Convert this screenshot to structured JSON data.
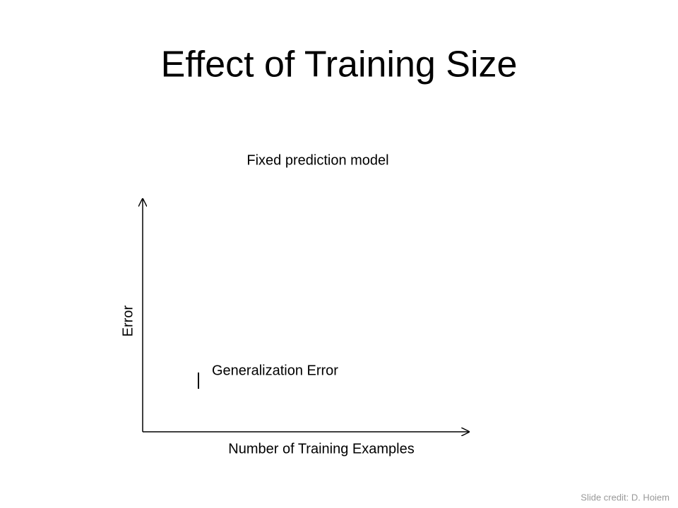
{
  "slide": {
    "title": "Effect of Training Size",
    "subtitle": "Fixed prediction model",
    "y_axis_label": "Error",
    "curve_label": "Generalization Error",
    "x_axis_label": "Number of Training Examples",
    "credit": "Slide credit: D. Hoiem"
  }
}
